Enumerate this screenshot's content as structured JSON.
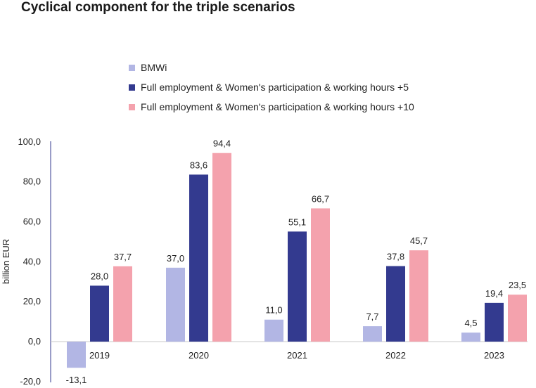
{
  "chart_data": {
    "type": "bar",
    "title": "Cyclical component for the triple scenarios",
    "xlabel": "",
    "ylabel": "billion EUR",
    "ylim": [
      -20,
      100
    ],
    "yticks": [
      "100,0",
      "80,0",
      "60,0",
      "40,0",
      "20,0",
      "0,0",
      "-20,0"
    ],
    "ytick_values": [
      100,
      80,
      60,
      40,
      20,
      0,
      -20
    ],
    "categories": [
      "2019",
      "2020",
      "2021",
      "2022",
      "2023"
    ],
    "series": [
      {
        "name": "BMWi",
        "color": "#b2b6e4",
        "values": [
          -13.1,
          37.0,
          11.0,
          7.7,
          4.5
        ],
        "labels": [
          "-13,1",
          "37,0",
          "11,0",
          "7,7",
          "4,5"
        ]
      },
      {
        "name": "Full employment & Women's participation & working hours +5",
        "color": "#333a8f",
        "values": [
          28.0,
          83.6,
          55.1,
          37.8,
          19.4
        ],
        "labels": [
          "28,0",
          "83,6",
          "55,1",
          "37,8",
          "19,4"
        ]
      },
      {
        "name": "Full employment & Women's participation & working hours +10",
        "color": "#f4a2ad",
        "values": [
          37.7,
          94.4,
          66.7,
          45.7,
          23.5
        ],
        "labels": [
          "37,7",
          "94,4",
          "66,7",
          "45,7",
          "23,5"
        ]
      }
    ],
    "legend_position": "top",
    "grid": false
  }
}
